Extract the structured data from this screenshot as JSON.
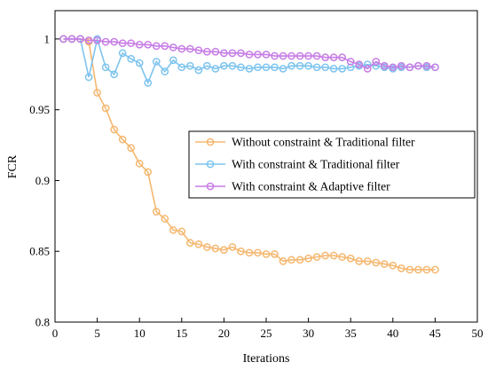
{
  "chart_data": {
    "type": "line",
    "title": "",
    "xlabel": "Iterations",
    "ylabel": "FCR",
    "xlim": [
      0,
      50
    ],
    "ylim": [
      0.8,
      1.02
    ],
    "xticks": [
      0,
      5,
      10,
      15,
      20,
      25,
      30,
      35,
      40,
      45,
      50
    ],
    "xtick_labels": [
      "0",
      "5",
      "10",
      "15",
      "20",
      "25",
      "30",
      "35",
      "40",
      "45",
      "50"
    ],
    "yticks": [
      0.8,
      0.85,
      0.9,
      0.95,
      1.0
    ],
    "ytick_labels": [
      "0.8",
      "0.85",
      "0.9",
      "0.95",
      "1"
    ],
    "grid": false,
    "legend_position": "center-right",
    "x": [
      1,
      2,
      3,
      4,
      5,
      6,
      7,
      8,
      9,
      10,
      11,
      12,
      13,
      14,
      15,
      16,
      17,
      18,
      19,
      20,
      21,
      22,
      23,
      24,
      25,
      26,
      27,
      28,
      29,
      30,
      31,
      32,
      33,
      34,
      35,
      36,
      37,
      38,
      39,
      40,
      41,
      42,
      43,
      44,
      45
    ],
    "series": [
      {
        "name": "Without constraint & Traditional filter",
        "color": "#F5B871",
        "values": [
          1.0,
          1.0,
          1.0,
          0.998,
          0.962,
          0.951,
          0.936,
          0.929,
          0.923,
          0.912,
          0.906,
          0.878,
          0.873,
          0.865,
          0.864,
          0.856,
          0.855,
          0.853,
          0.852,
          0.851,
          0.853,
          0.85,
          0.849,
          0.849,
          0.848,
          0.848,
          0.843,
          0.844,
          0.844,
          0.845,
          0.846,
          0.847,
          0.847,
          0.846,
          0.845,
          0.843,
          0.843,
          0.842,
          0.841,
          0.84,
          0.838,
          0.837,
          0.837,
          0.837,
          0.837
        ]
      },
      {
        "name": "With constraint & Traditional filter",
        "color": "#7EC4EE",
        "values": [
          1.0,
          1.0,
          1.0,
          0.973,
          1.0,
          0.98,
          0.975,
          0.99,
          0.986,
          0.983,
          0.969,
          0.984,
          0.977,
          0.985,
          0.98,
          0.981,
          0.978,
          0.981,
          0.979,
          0.981,
          0.981,
          0.98,
          0.979,
          0.98,
          0.98,
          0.98,
          0.979,
          0.981,
          0.981,
          0.981,
          0.98,
          0.98,
          0.979,
          0.979,
          0.98,
          0.981,
          0.982,
          0.981,
          0.98,
          0.979,
          0.98,
          0.98,
          0.981,
          0.98,
          0.98
        ]
      },
      {
        "name": "With constraint & Adaptive filter",
        "color": "#C77DE5",
        "values": [
          1.0,
          1.0,
          1.0,
          0.999,
          0.999,
          0.998,
          0.998,
          0.997,
          0.997,
          0.996,
          0.996,
          0.995,
          0.995,
          0.994,
          0.993,
          0.993,
          0.992,
          0.991,
          0.991,
          0.99,
          0.99,
          0.99,
          0.989,
          0.989,
          0.989,
          0.988,
          0.988,
          0.988,
          0.988,
          0.988,
          0.988,
          0.987,
          0.987,
          0.987,
          0.984,
          0.982,
          0.979,
          0.984,
          0.981,
          0.98,
          0.981,
          0.98,
          0.981,
          0.981,
          0.98
        ]
      }
    ]
  }
}
